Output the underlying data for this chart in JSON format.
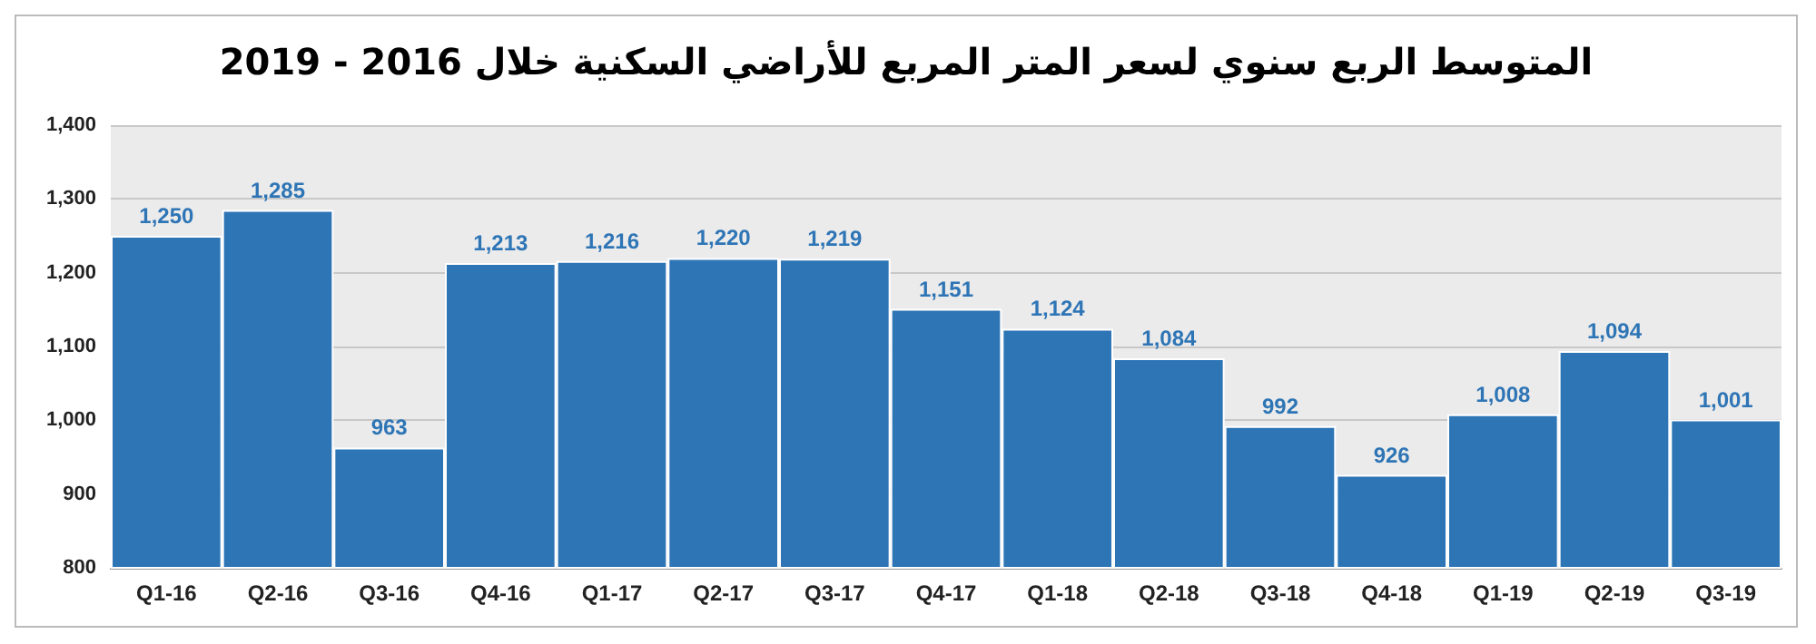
{
  "chart_data": {
    "type": "bar",
    "title": "المتوسط الربع سنوي لسعر المتر المربع للأراضي السكنية خلال 2016 - 2019",
    "categories": [
      "Q1-16",
      "Q2-16",
      "Q3-16",
      "Q4-16",
      "Q1-17",
      "Q2-17",
      "Q3-17",
      "Q4-17",
      "Q1-18",
      "Q2-18",
      "Q3-18",
      "Q4-18",
      "Q1-19",
      "Q2-19",
      "Q3-19"
    ],
    "values": [
      1250,
      1285,
      963,
      1213,
      1216,
      1220,
      1219,
      1151,
      1124,
      1084,
      992,
      926,
      1008,
      1094,
      1001
    ],
    "value_labels": [
      "1,250",
      "1,285",
      "963",
      "1,213",
      "1,216",
      "1,220",
      "1,219",
      "1,151",
      "1,124",
      "1,084",
      "992",
      "926",
      "1,008",
      "1,094",
      "1,001"
    ],
    "color": "#2e75b6",
    "ylim": [
      800,
      1400
    ],
    "yticks": [
      {
        "value": 800,
        "label": "800"
      },
      {
        "value": 900,
        "label": "900"
      },
      {
        "value": 1000,
        "label": "1,000"
      },
      {
        "value": 1100,
        "label": "1,100"
      },
      {
        "value": 1200,
        "label": "1,200"
      },
      {
        "value": 1300,
        "label": "1,300"
      },
      {
        "value": 1400,
        "label": "1,400"
      }
    ],
    "grid": "y"
  }
}
